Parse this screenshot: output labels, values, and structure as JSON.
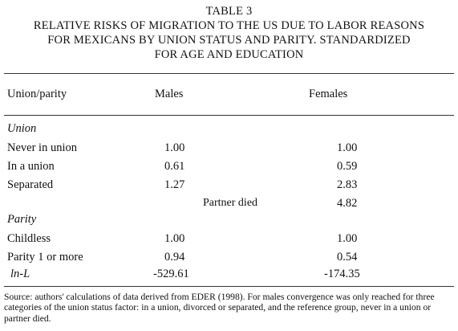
{
  "table": {
    "number": "TABLE 3",
    "title_lines": [
      "RELATIVE RISKS OF MIGRATION TO THE US DUE TO LABOR REASONS",
      "FOR MEXICANS BY UNION STATUS AND PARITY. STANDARDIZED",
      "FOR AGE AND EDUCATION"
    ],
    "columns": [
      "Union/parity",
      "Males",
      "Females"
    ],
    "sections": [
      {
        "heading": "Union",
        "rows": [
          {
            "label": "Never in union",
            "males": "1.00",
            "females": "1.00"
          },
          {
            "label": "In a union",
            "males": "0.61",
            "females": "0.59"
          },
          {
            "label": "Separated",
            "males": "1.27",
            "females": "2.83"
          },
          {
            "label": "",
            "middle": "Partner died",
            "males": "",
            "females": "4.82"
          }
        ]
      },
      {
        "heading": "Parity",
        "rows": [
          {
            "label": "Childless",
            "males": "1.00",
            "females": "1.00"
          },
          {
            "label": "Parity 1 or more",
            "males": "0.94",
            "females": "0.54"
          },
          {
            "label": "ln-L",
            "males": "-529.61",
            "females": "-174.35"
          }
        ]
      }
    ],
    "source": "Source: authors' calculations of data derived from EDER (1998). For males convergence was only reached for three categories of the union status factor:  in a union, divorced or separated, and the reference group, never in a union or partner died."
  }
}
